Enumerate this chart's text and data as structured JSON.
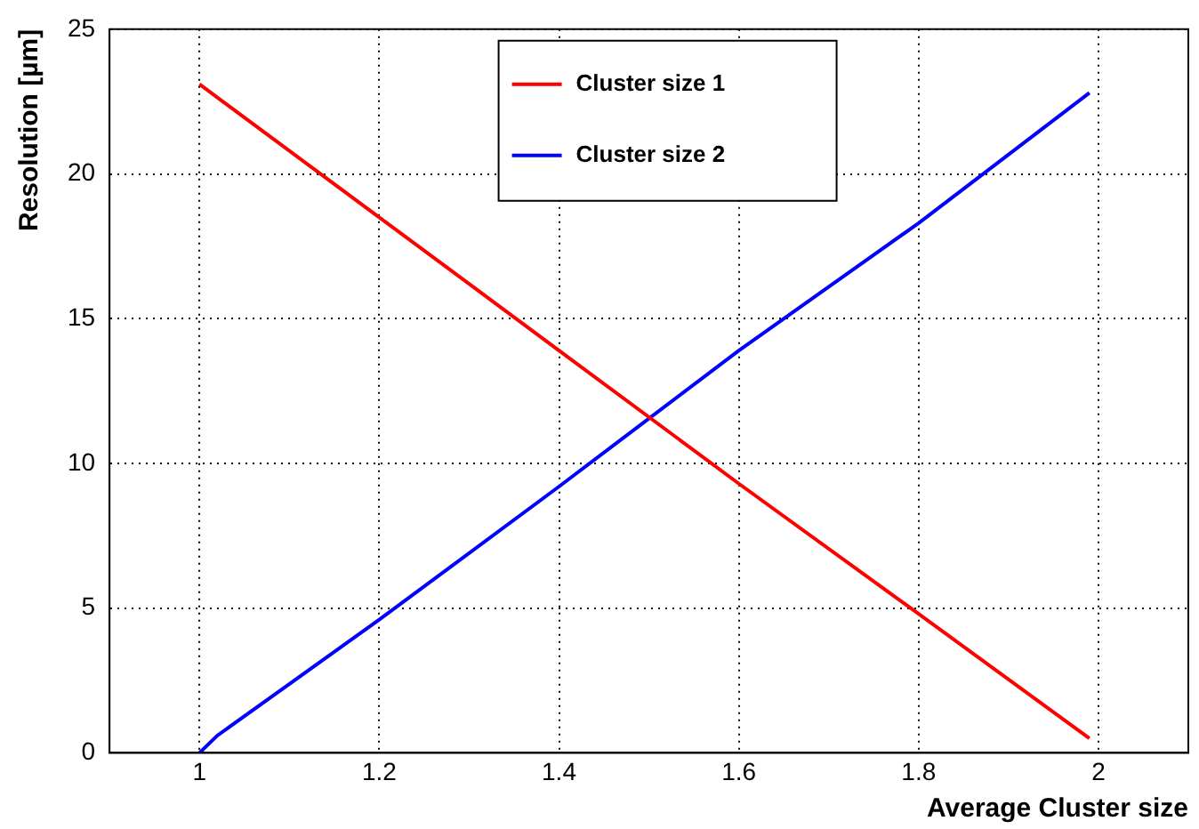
{
  "chart_data": {
    "type": "line",
    "xlabel": "Average Cluster size",
    "ylabel": "Resolution [µm]",
    "xlim": [
      0.9,
      2.1
    ],
    "xticks": [
      1,
      1.2,
      1.4,
      1.6,
      1.8,
      2
    ],
    "ylim": [
      0,
      25
    ],
    "yticks": [
      0,
      5,
      10,
      15,
      20,
      25
    ],
    "grid": true,
    "legend": "top",
    "marker": "none",
    "line_style": "solid",
    "series": [
      {
        "name": "Cluster size 1",
        "color": "#ff0000",
        "x": [
          1,
          1.2,
          1.4,
          1.6,
          1.8,
          1.99
        ],
        "values": [
          23.1,
          18.5,
          13.9,
          9.3,
          4.8,
          0.5
        ]
      },
      {
        "name": "Cluster size 2",
        "color": "#0000ff",
        "x": [
          1,
          1.02,
          1.2,
          1.4,
          1.6,
          1.8,
          1.99
        ],
        "values": [
          0,
          0.6,
          4.6,
          9.2,
          13.9,
          18.3,
          22.8
        ]
      }
    ]
  }
}
